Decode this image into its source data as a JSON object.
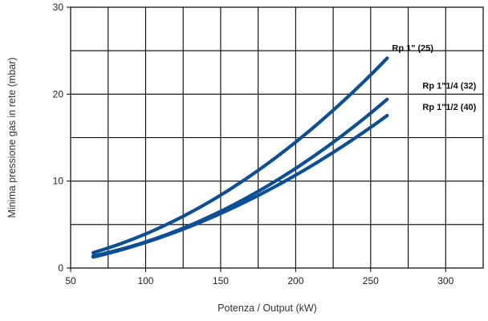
{
  "chart_data": {
    "type": "line",
    "title": "",
    "xlabel": "Potenza / Output (kW)",
    "ylabel": "Minima pressione gas in rete (mbar)",
    "xlim": [
      50,
      325
    ],
    "ylim": [
      0,
      30
    ],
    "x_ticks": [
      50,
      100,
      150,
      200,
      250,
      300
    ],
    "y_ticks": [
      0,
      10,
      20,
      30
    ],
    "grid": true,
    "grid_x_step": 25,
    "grid_y_step": 5,
    "line_color": "#0d4f94",
    "series": [
      {
        "name": "Rp 1\" (25)",
        "x": [
          65,
          100,
          150,
          200,
          261
        ],
        "y": [
          1.8,
          3.9,
          8.3,
          14.6,
          24.1
        ]
      },
      {
        "name": "Rp 1\"1/4 (32)",
        "x": [
          65,
          100,
          150,
          200,
          261
        ],
        "y": [
          1.4,
          3.0,
          6.5,
          11.5,
          19.4
        ]
      },
      {
        "name": "Rp 1\"1/2 (40)",
        "x": [
          65,
          100,
          150,
          200,
          261
        ],
        "y": [
          1.3,
          2.9,
          6.2,
          10.8,
          17.5
        ]
      }
    ]
  }
}
